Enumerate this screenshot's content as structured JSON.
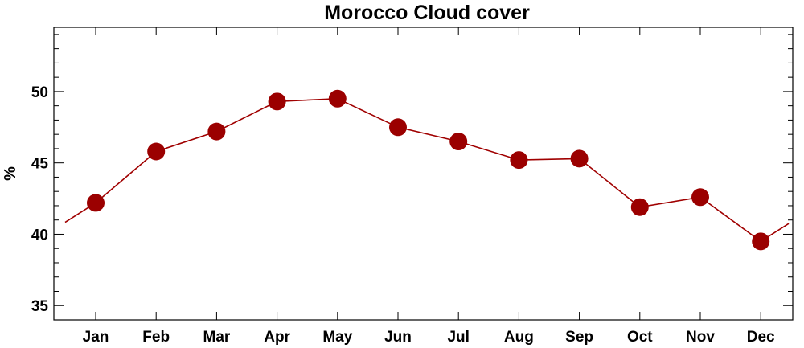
{
  "chart_data": {
    "type": "line",
    "title": "Morocco Cloud cover",
    "xlabel": "",
    "ylabel": "%",
    "categories": [
      "Jan",
      "Feb",
      "Mar",
      "Apr",
      "May",
      "Jun",
      "Jul",
      "Aug",
      "Sep",
      "Oct",
      "Nov",
      "Dec"
    ],
    "series": [
      {
        "values": [
          42.2,
          45.8,
          47.2,
          49.3,
          49.5,
          47.5,
          46.5,
          45.2,
          45.3,
          41.9,
          42.6,
          39.5
        ]
      }
    ],
    "ylim": [
      34,
      54.5
    ],
    "yticks": [
      35,
      40,
      45,
      50
    ],
    "grid": false,
    "series_color": "#9b0000",
    "line_color": "#a00000",
    "axis_color": "#000000"
  }
}
